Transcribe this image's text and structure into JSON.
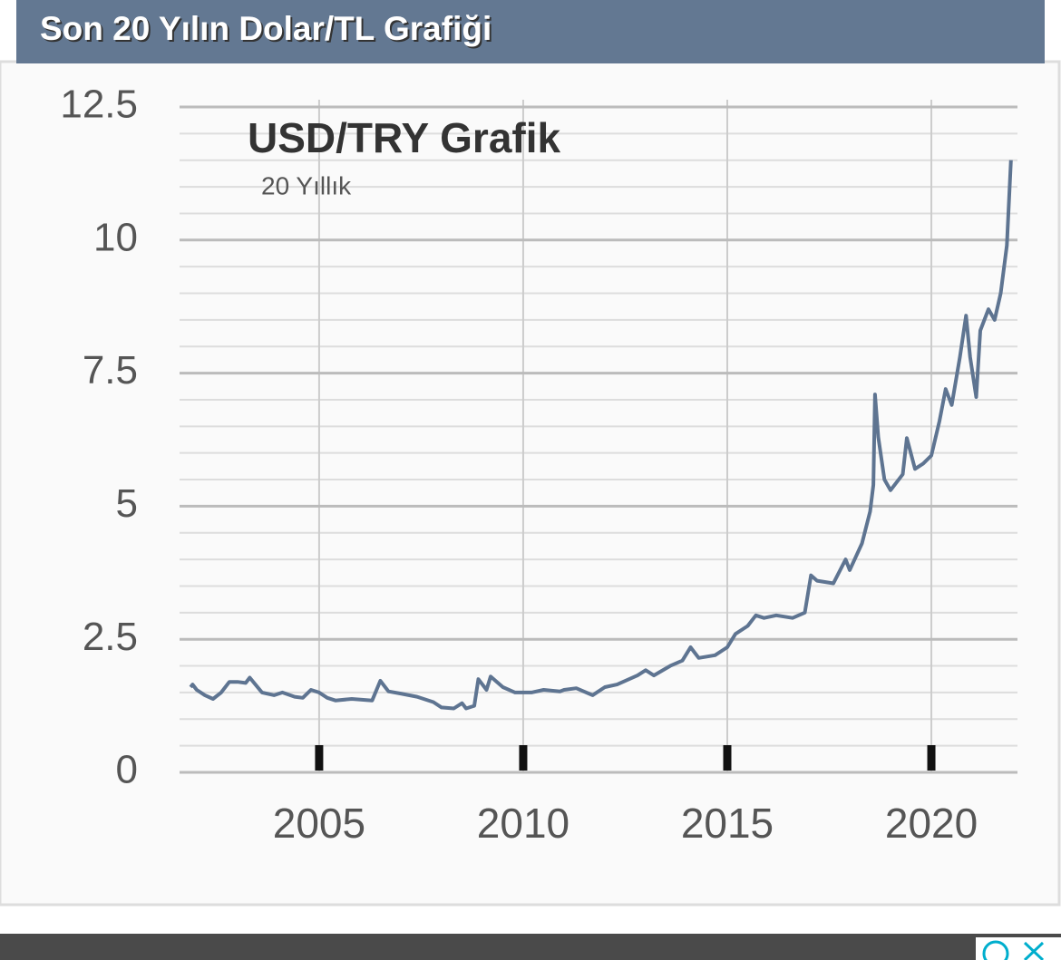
{
  "header": {
    "title": "Son 20 Yılın Dolar/TL Grafiği"
  },
  "chart_data": {
    "type": "line",
    "title": "USD/TRY Grafik",
    "subtitle": "20 Yıllık",
    "x": [
      2001.85,
      2001.9,
      2002.0,
      2002.2,
      2002.4,
      2002.6,
      2002.8,
      2003.0,
      2003.2,
      2003.3,
      2003.6,
      2003.9,
      2004.1,
      2004.4,
      2004.6,
      2004.8,
      2005.0,
      2005.2,
      2005.4,
      2005.8,
      2006.3,
      2006.5,
      2006.7,
      2007.0,
      2007.4,
      2007.8,
      2008.0,
      2008.3,
      2008.5,
      2008.6,
      2008.8,
      2008.9,
      2009.1,
      2009.2,
      2009.5,
      2009.8,
      2010.2,
      2010.5,
      2010.9,
      2011.0,
      2011.3,
      2011.7,
      2012.0,
      2012.3,
      2012.8,
      2013.0,
      2013.2,
      2013.6,
      2013.9,
      2014.1,
      2014.3,
      2014.7,
      2015.0,
      2015.2,
      2015.5,
      2015.7,
      2015.9,
      2016.2,
      2016.6,
      2016.9,
      2017.05,
      2017.2,
      2017.6,
      2017.9,
      2018.0,
      2018.3,
      2018.5,
      2018.58,
      2018.62,
      2018.7,
      2018.85,
      2019.0,
      2019.3,
      2019.4,
      2019.6,
      2019.8,
      2020.0,
      2020.2,
      2020.35,
      2020.5,
      2020.7,
      2020.85,
      2020.95,
      2021.1,
      2021.2,
      2021.4,
      2021.55,
      2021.7,
      2021.85,
      2021.95
    ],
    "values": [
      1.6,
      1.65,
      1.55,
      1.45,
      1.38,
      1.5,
      1.7,
      1.7,
      1.68,
      1.78,
      1.5,
      1.45,
      1.5,
      1.42,
      1.4,
      1.55,
      1.5,
      1.4,
      1.35,
      1.38,
      1.35,
      1.72,
      1.52,
      1.48,
      1.42,
      1.32,
      1.22,
      1.2,
      1.3,
      1.2,
      1.25,
      1.75,
      1.55,
      1.8,
      1.6,
      1.5,
      1.5,
      1.55,
      1.52,
      1.55,
      1.58,
      1.45,
      1.6,
      1.65,
      1.82,
      1.92,
      1.82,
      2.0,
      2.1,
      2.35,
      2.15,
      2.2,
      2.35,
      2.6,
      2.75,
      2.95,
      2.9,
      2.95,
      2.9,
      3.0,
      3.7,
      3.6,
      3.55,
      4.0,
      3.8,
      4.3,
      4.9,
      5.4,
      7.1,
      6.3,
      5.5,
      5.3,
      5.6,
      6.28,
      5.7,
      5.8,
      5.95,
      6.6,
      7.2,
      6.9,
      7.8,
      8.58,
      7.8,
      7.05,
      8.3,
      8.7,
      8.5,
      9.0,
      9.9,
      11.5
    ],
    "color": "#5e7491",
    "xlim": [
      2001.58,
      2022.11
    ],
    "ylim": [
      0,
      12.5
    ],
    "xticks": [
      2005,
      2010,
      2015,
      2020
    ],
    "yticks": [
      0,
      2.5,
      5,
      7.5,
      10,
      12.5
    ],
    "minor_yticks": [
      0.5,
      1,
      1.5,
      2,
      3,
      3.5,
      4,
      4.5,
      5.5,
      6,
      6.5,
      7,
      8,
      8.5,
      9,
      9.5,
      10.5,
      11,
      11.5,
      12
    ],
    "grid": true
  }
}
